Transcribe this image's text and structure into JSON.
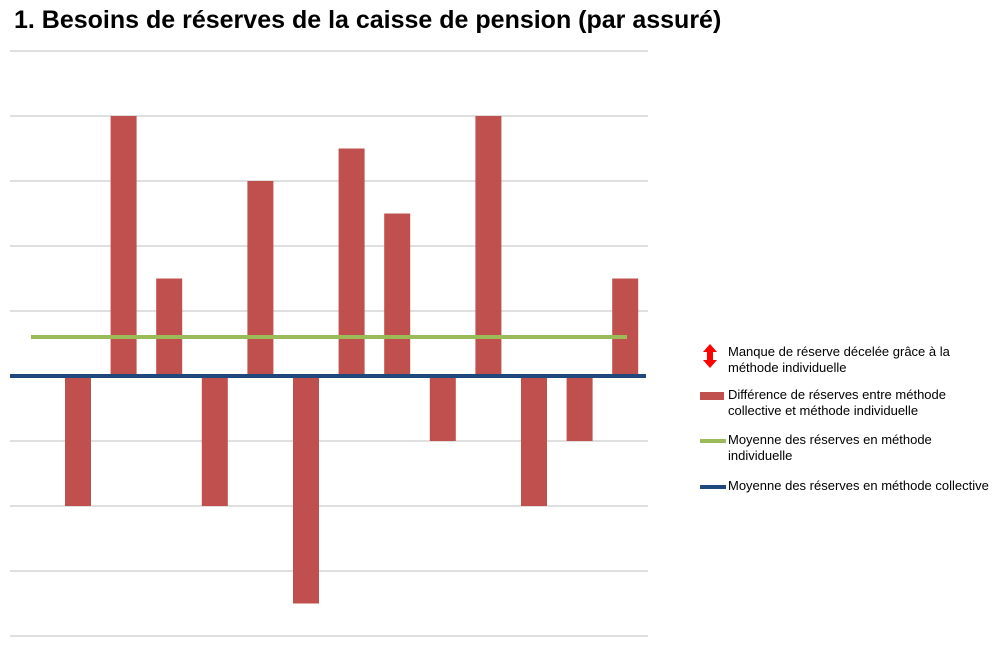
{
  "title": "1. Besoins de réserves de la caisse de pension (par assuré)",
  "colors": {
    "bar": "#c0504d",
    "individual_mean": "#9bbb59",
    "collective_mean": "#1f497d",
    "arrow": "#ff0000",
    "grid": "#bfbfbf"
  },
  "legend": [
    {
      "text": "Manque de réserve décelée grâce à la méthode individuelle",
      "icon": "double-arrow-icon"
    },
    {
      "text": "Différence de réserves entre méthode collective et méthode individuelle",
      "icon": "bar-swatch"
    },
    {
      "text": "Moyenne des réserves en méthode individuelle",
      "icon": "green-line-swatch"
    },
    {
      "text": "Moyenne des réserves en méthode collective",
      "icon": "blue-line-swatch"
    }
  ],
  "chart_data": {
    "type": "bar",
    "series": [
      {
        "values": [
          -2,
          4,
          1.5,
          -2,
          3,
          -3.5,
          3.5,
          2.5,
          -1,
          4,
          -2,
          -1,
          1.5
        ]
      }
    ],
    "individual_mean": 0.6,
    "collective_mean": 0,
    "ylim": [
      -4,
      5
    ],
    "grid": true,
    "legend_position": "right"
  }
}
